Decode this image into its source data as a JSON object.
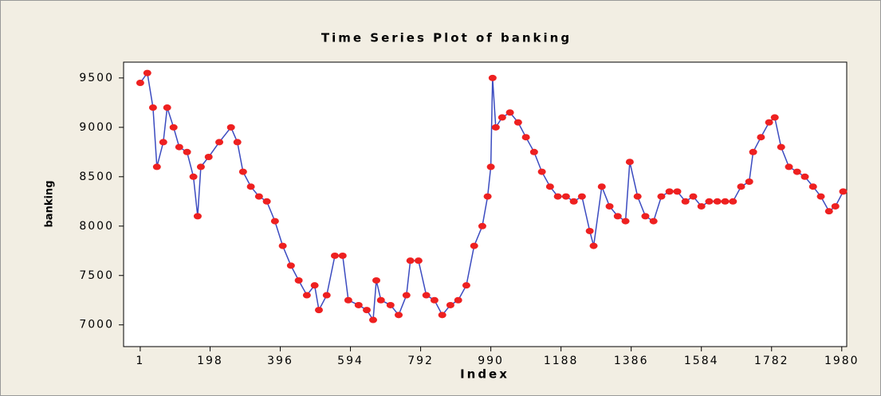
{
  "chart_data": {
    "type": "line",
    "title": "Time Series Plot of banking",
    "xlabel": "Index",
    "ylabel": "banking",
    "x": [
      1,
      21,
      37,
      48,
      66,
      77,
      95,
      111,
      133,
      151,
      163,
      172,
      194,
      224,
      257,
      275,
      291,
      313,
      336,
      358,
      381,
      403,
      426,
      448,
      471,
      493,
      505,
      527,
      550,
      572,
      588,
      617,
      640,
      658,
      667,
      680,
      707,
      730,
      752,
      763,
      786,
      808,
      831,
      853,
      876,
      898,
      921,
      943,
      966,
      981,
      990,
      995,
      1004,
      1022,
      1044,
      1067,
      1089,
      1112,
      1134,
      1157,
      1179,
      1202,
      1224,
      1247,
      1269,
      1280,
      1303,
      1325,
      1348,
      1370,
      1382,
      1404,
      1426,
      1449,
      1471,
      1494,
      1516,
      1539,
      1561,
      1584,
      1606,
      1629,
      1651,
      1673,
      1696,
      1719,
      1730,
      1752,
      1775,
      1791,
      1809,
      1831,
      1854,
      1876,
      1899,
      1921,
      1944,
      1962,
      1984
    ],
    "values": [
      9450,
      9550,
      9200,
      8600,
      8850,
      9200,
      9000,
      8800,
      8750,
      8500,
      8100,
      8600,
      8700,
      8850,
      9000,
      8850,
      8550,
      8400,
      8300,
      8250,
      8050,
      7800,
      7600,
      7450,
      7300,
      7400,
      7150,
      7300,
      7700,
      7700,
      7250,
      7200,
      7150,
      7050,
      7450,
      7250,
      7200,
      7100,
      7300,
      7650,
      7650,
      7300,
      7250,
      7100,
      7200,
      7250,
      7400,
      7800,
      8000,
      8300,
      8600,
      9500,
      9000,
      9100,
      9150,
      9050,
      8900,
      8750,
      8550,
      8400,
      8300,
      8300,
      8250,
      8300,
      7950,
      7800,
      8400,
      8200,
      8100,
      8050,
      8650,
      8300,
      8100,
      8050,
      8300,
      8350,
      8350,
      8250,
      8300,
      8200,
      8250,
      8250,
      8250,
      8250,
      8400,
      8450,
      8750,
      8900,
      9050,
      9100,
      8800,
      8600,
      8550,
      8500,
      8400,
      8300,
      8150,
      8200,
      8350
    ],
    "color": "#3b4bc0",
    "marker_color": "#ee2020",
    "xlim": [
      -46,
      1994
    ],
    "xticks": [
      1,
      198,
      396,
      594,
      792,
      990,
      1188,
      1386,
      1584,
      1782,
      1980
    ],
    "ylim": [
      6780,
      9660
    ],
    "yticks": [
      7000,
      7500,
      8000,
      8500,
      9000,
      9500
    ]
  }
}
